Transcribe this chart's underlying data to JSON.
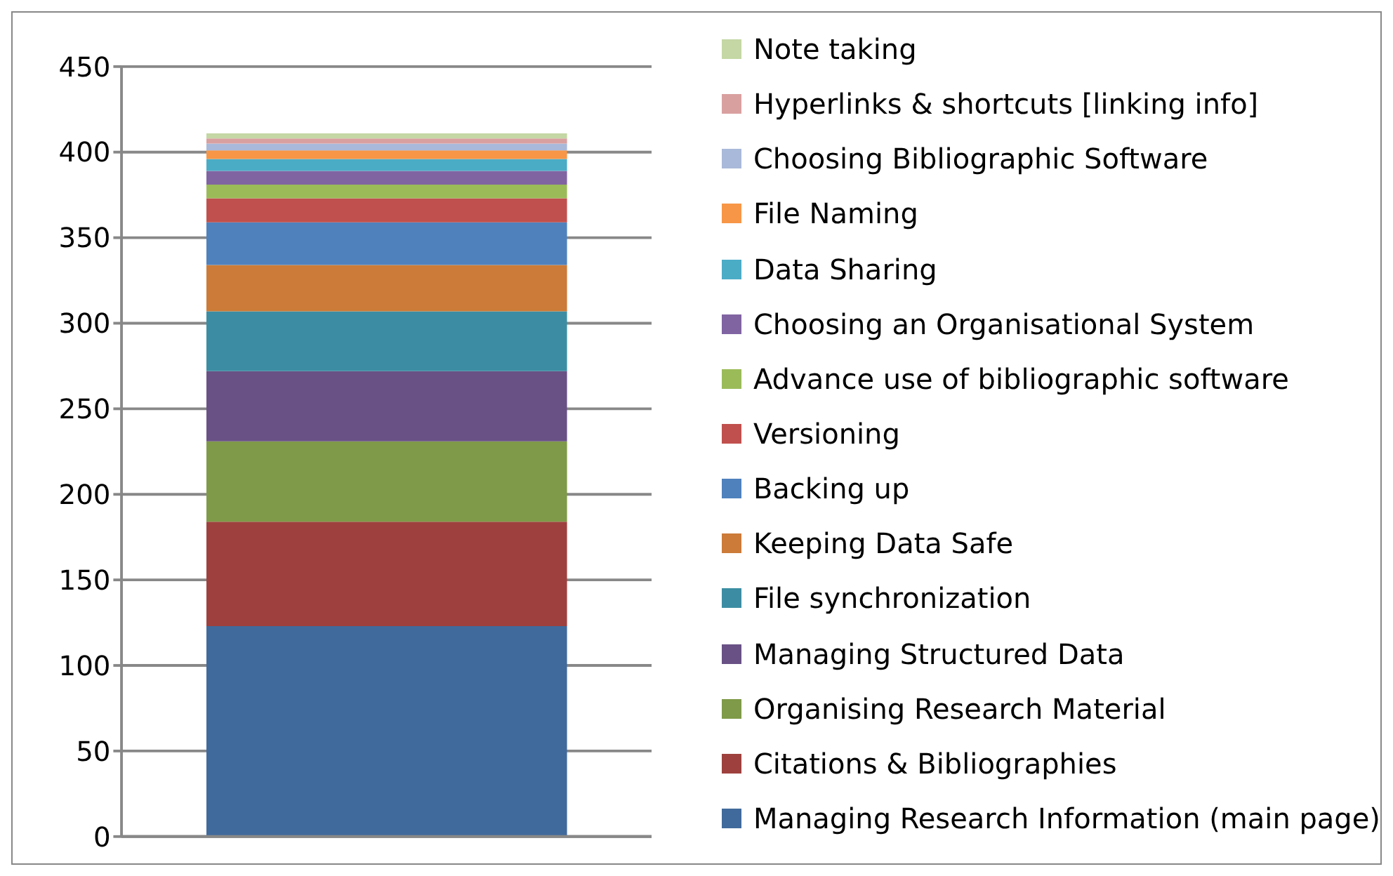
{
  "chart_data": {
    "type": "bar",
    "stacked": true,
    "categories": [
      null
    ],
    "ylim": [
      0,
      450
    ],
    "yticks": [
      0,
      50,
      100,
      150,
      200,
      250,
      300,
      350,
      400,
      450
    ],
    "grid": "y",
    "legend": "right",
    "series": [
      {
        "name": "Managing Research Information (main page)",
        "color": "#416a9c",
        "values": [
          123
        ]
      },
      {
        "name": "Citations & Bibliographies",
        "color": "#9e413e",
        "values": [
          61
        ]
      },
      {
        "name": "Organising Research Material",
        "color": "#7f9a48",
        "values": [
          47
        ]
      },
      {
        "name": "Managing Structured Data",
        "color": "#695185",
        "values": [
          41
        ]
      },
      {
        "name": "File synchronization",
        "color": "#3c8da3",
        "values": [
          35
        ]
      },
      {
        "name": "Keeping Data Safe",
        "color": "#cc7b38",
        "values": [
          27
        ]
      },
      {
        "name": "Backing up",
        "color": "#4f81bd",
        "values": [
          25
        ]
      },
      {
        "name": "Versioning",
        "color": "#c0504d",
        "values": [
          14
        ]
      },
      {
        "name": "Advance use of bibliographic software",
        "color": "#9bbb59",
        "values": [
          8
        ]
      },
      {
        "name": "Choosing an Organisational System",
        "color": "#8064a2",
        "values": [
          8
        ]
      },
      {
        "name": "Data Sharing",
        "color": "#4bacc6",
        "values": [
          7
        ]
      },
      {
        "name": "File Naming",
        "color": "#f79646",
        "values": [
          5
        ]
      },
      {
        "name": "Choosing Bibliographic Software",
        "color": "#a9b9d9",
        "values": [
          4
        ]
      },
      {
        "name": "Hyperlinks & shortcuts [linking info]",
        "color": "#d9a0a0",
        "values": [
          3
        ]
      },
      {
        "name": "Note taking",
        "color": "#c4d7a4",
        "values": [
          3
        ]
      }
    ]
  }
}
